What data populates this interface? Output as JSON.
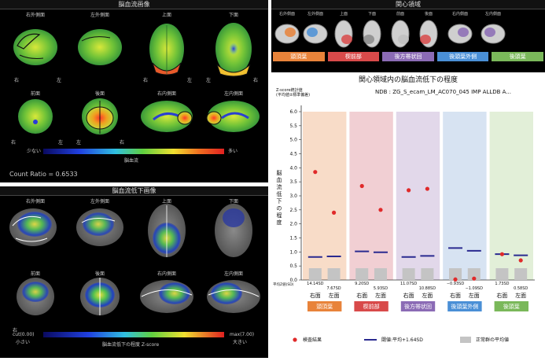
{
  "top_left": {
    "title": "脳血流画像",
    "views_row1": [
      "右外側面",
      "左外側面",
      "上面",
      "下面"
    ],
    "views_row2": [
      "前面",
      "後面",
      "右内側面",
      "左内側面"
    ],
    "orient": {
      "right": "右",
      "left": "左"
    },
    "scale_low": "少ない",
    "scale_high": "多い",
    "scale_label": "脳血流",
    "count_ratio": "Count Ratio = 0.6533"
  },
  "bottom_left": {
    "title": "脳血流低下画像",
    "views_row1": [
      "右外側面",
      "左外側面",
      "上面",
      "下面"
    ],
    "views_row2": [
      "前面",
      "後面",
      "右内側面",
      "左内側面"
    ],
    "cut_label": "cut(0.00)",
    "cut_sub": "小さい",
    "max_label": "max(7.00)",
    "max_sub": "大きい",
    "scale_label": "脳血流低下の程度 Z-score"
  },
  "roi": {
    "title": "関心領域",
    "views": [
      "右外側面",
      "左外側面",
      "上面",
      "下面",
      "前面",
      "後面",
      "右内側面",
      "左内側面"
    ],
    "tabs": [
      "頭頂葉",
      "楔前部",
      "後方帯状回",
      "後頭葉外側",
      "後頭葉"
    ],
    "tab_colors": [
      "#e8833a",
      "#d84a4a",
      "#8b6bb5",
      "#4a8fd6",
      "#7ab85a"
    ]
  },
  "chart_data": {
    "type": "scatter",
    "title": "関心領域内の脳血流低下の程度",
    "header_note": "Z-score統計値\n(平均値±標準偏差)",
    "ndb": "NDB : ZG_S_ecam_LM_AC070_045 IMP ALLDB A...",
    "ylabel": "脳血流低下の程度",
    "ylim": [
      0,
      6.0
    ],
    "yticks": [
      "0.0",
      "0.5",
      "1.0",
      "1.5",
      "2.0",
      "2.5",
      "3.0",
      "3.5",
      "4.0",
      "4.5",
      "5.0",
      "5.5",
      "6.0"
    ],
    "row_label": "平均Z値(SD)",
    "regions": [
      "頭頂葉",
      "楔前部",
      "後方帯状回",
      "後頭葉外側",
      "後頭葉"
    ],
    "region_colors": [
      "#f8dcc8",
      "#f1cfd3",
      "#e2d8ea",
      "#d7e3f2",
      "#e2efd8"
    ],
    "region_tag_colors": [
      "#e8833a",
      "#d84a4a",
      "#8b6bb5",
      "#4a8fd6",
      "#7ab85a"
    ],
    "sides": [
      "右面",
      "左面"
    ],
    "sd_labels": [
      "14.14SD",
      "7.67SD",
      "9.20SD",
      "5.93SD",
      "11.07SD",
      "10.88SD",
      "−0.93SD",
      "−1.09SD",
      "1.73SD",
      "0.58SD"
    ],
    "results": [
      3.85,
      2.4,
      3.35,
      2.5,
      3.2,
      3.25,
      0.02,
      0.05,
      0.92,
      0.7
    ],
    "thresholds": [
      0.82,
      0.84,
      1.02,
      0.99,
      0.82,
      0.86,
      1.14,
      1.04,
      0.92,
      0.88
    ],
    "normal_mean": [
      0.42,
      0.42,
      0.42,
      0.42,
      0.42,
      0.42,
      0.42,
      0.42,
      0.42,
      0.42
    ],
    "legend": {
      "result": "検査結果",
      "threshold": "閾値:平均+1.64SD",
      "normal": "正常群の平均値"
    }
  }
}
